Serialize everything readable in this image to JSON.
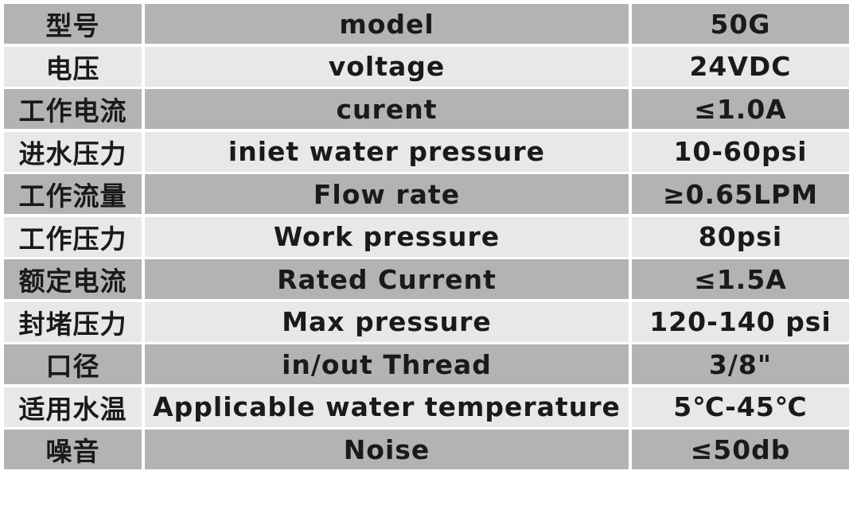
{
  "table": {
    "rows": [
      [
        "型号",
        "model",
        "50G"
      ],
      [
        "电压",
        "voltage",
        "24VDC"
      ],
      [
        "工作电流",
        "curent",
        "≤1.0A"
      ],
      [
        "进水压力",
        "iniet water pressure",
        "10-60psi"
      ],
      [
        "工作流量",
        "Flow rate",
        "≥0.65LPM"
      ],
      [
        "工作压力",
        "Work pressure",
        "80psi"
      ],
      [
        "额定电流",
        "Rated Current",
        "≤1.5A"
      ],
      [
        "封堵压力",
        "Max pressure",
        "120-140 psi"
      ],
      [
        "口径",
        "in/out Thread",
        "3/8\""
      ],
      [
        "适用水温",
        "Applicable water temperature",
        "5℃-45℃"
      ],
      [
        "噪音",
        "Noise",
        "≤50db"
      ]
    ]
  }
}
